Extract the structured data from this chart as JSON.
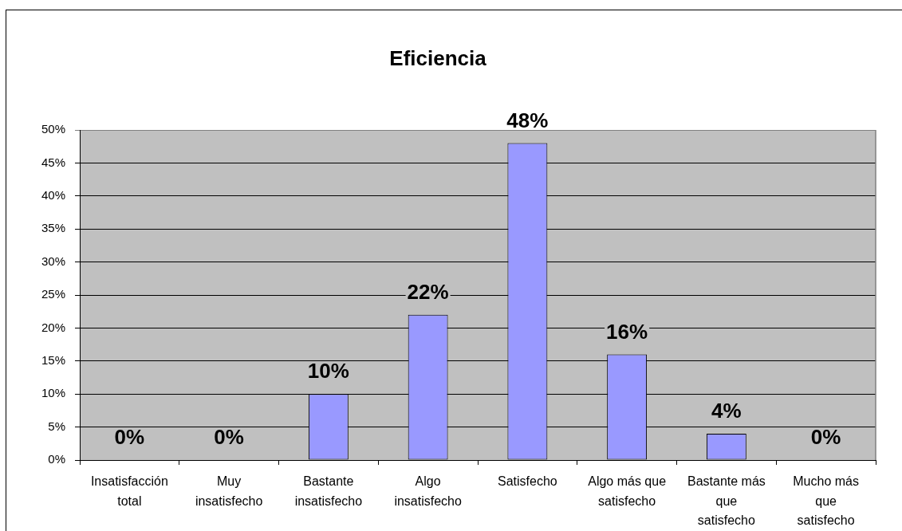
{
  "chart_data": {
    "type": "bar",
    "title": "Eficiencia",
    "categories": [
      "Insatisfacción total",
      "Muy insatisfecho",
      "Bastante insatisfecho",
      "Algo insatisfecho",
      "Satisfecho",
      "Algo más que satisfecho",
      "Bastante más que satisfecho",
      "Mucho más que satisfecho"
    ],
    "values": [
      0,
      0,
      10,
      22,
      48,
      16,
      4,
      0
    ],
    "color": "#9999ff",
    "value_labels": [
      "0%",
      "0%",
      "10%",
      "22%",
      "48%",
      "16%",
      "4%",
      "0%"
    ],
    "ylim": [
      0,
      50
    ],
    "yticks": [
      {
        "value": 0,
        "label": "0%"
      },
      {
        "value": 5,
        "label": "5%"
      },
      {
        "value": 10,
        "label": "10%"
      },
      {
        "value": 15,
        "label": "15%"
      },
      {
        "value": 20,
        "label": "20%"
      },
      {
        "value": 25,
        "label": "25%"
      },
      {
        "value": 30,
        "label": "30%"
      },
      {
        "value": 35,
        "label": "35%"
      },
      {
        "value": 40,
        "label": "40%"
      },
      {
        "value": 45,
        "label": "45%"
      },
      {
        "value": 50,
        "label": "50%"
      }
    ],
    "grid": "y",
    "legend": false
  }
}
